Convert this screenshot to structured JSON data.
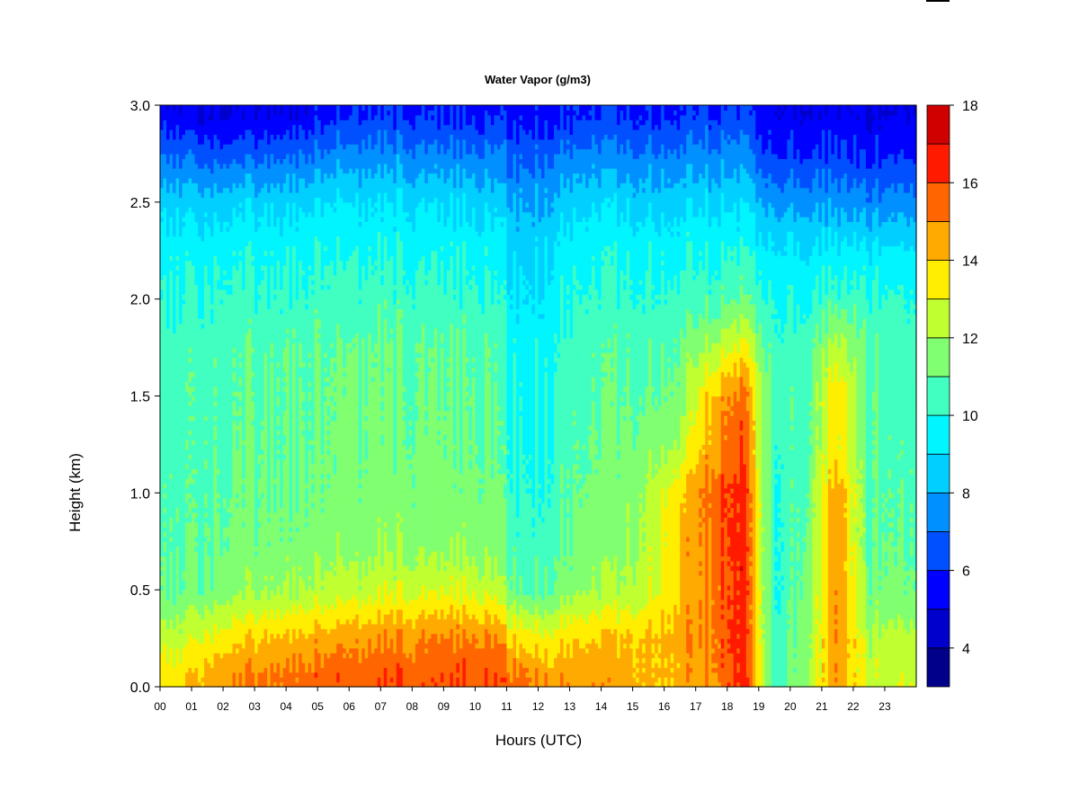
{
  "chart_data": {
    "type": "heatmap",
    "title": "Water Vapor (g/m3)",
    "xlabel": "Hours (UTC)",
    "ylabel": "Height (km)",
    "xlim": [
      0,
      24
    ],
    "ylim": [
      0,
      3
    ],
    "x_ticks": [
      "00",
      "01",
      "02",
      "03",
      "04",
      "05",
      "06",
      "07",
      "08",
      "09",
      "10",
      "11",
      "12",
      "13",
      "14",
      "15",
      "16",
      "17",
      "18",
      "19",
      "20",
      "21",
      "22",
      "23"
    ],
    "y_ticks": [
      "0.0",
      "0.5",
      "1.0",
      "1.5",
      "2.0",
      "2.5",
      "3.0"
    ],
    "colorbar": {
      "range": [
        3,
        18
      ],
      "ticks": [
        "4",
        "6",
        "8",
        "10",
        "12",
        "14",
        "16",
        "18"
      ],
      "tick_values": [
        4,
        6,
        8,
        10,
        12,
        14,
        16,
        18
      ],
      "levels": [
        3,
        4,
        5,
        6,
        7,
        8,
        9,
        10,
        11,
        12,
        13,
        14,
        15,
        16,
        17,
        18
      ],
      "colors": [
        "#00008B",
        "#0000CD",
        "#0000FF",
        "#0050FF",
        "#0090FF",
        "#00CFFF",
        "#00F5FF",
        "#40FFC0",
        "#80FF70",
        "#C0FF30",
        "#FFEE00",
        "#FFAA00",
        "#FF6600",
        "#FF1A00",
        "#D00000",
        "#8B0000"
      ]
    },
    "hours": [
      0,
      1,
      2,
      3,
      4,
      5,
      6,
      7,
      8,
      9,
      10,
      11,
      12,
      13,
      14,
      15,
      16,
      17,
      18,
      19,
      20,
      21,
      22,
      23
    ],
    "heights_km": [
      0.05,
      0.25,
      0.5,
      0.75,
      1.0,
      1.25,
      1.5,
      1.75,
      2.0,
      2.25,
      2.5,
      2.75,
      2.95
    ],
    "values": [
      [
        13.5,
        14.5,
        15.0,
        15.3,
        15.5,
        15.6,
        15.7,
        15.8,
        15.8,
        15.8,
        15.8,
        15.3,
        14.8,
        14.5,
        14.5,
        14.3,
        14.5,
        15.0,
        16.5,
        10.5,
        12.0,
        14.8,
        12.5,
        13.0
      ],
      [
        12.5,
        13.2,
        13.8,
        14.2,
        14.4,
        14.6,
        14.8,
        15.0,
        15.0,
        15.1,
        15.0,
        13.5,
        13.5,
        13.8,
        14.0,
        14.3,
        14.7,
        15.2,
        16.5,
        10.3,
        11.8,
        15.0,
        12.3,
        12.5
      ],
      [
        11.0,
        11.3,
        11.8,
        12.0,
        12.2,
        12.4,
        12.6,
        12.8,
        12.8,
        12.8,
        12.6,
        10.8,
        11.2,
        11.8,
        12.0,
        12.8,
        14.2,
        15.2,
        16.5,
        10.0,
        11.5,
        14.8,
        11.3,
        11.3
      ],
      [
        10.8,
        11.0,
        11.3,
        11.4,
        11.5,
        11.6,
        11.6,
        11.8,
        11.6,
        11.6,
        11.5,
        10.3,
        10.8,
        11.2,
        11.5,
        12.5,
        14.3,
        15.3,
        16.5,
        10.0,
        11.3,
        14.6,
        11.0,
        11.1
      ],
      [
        10.7,
        10.9,
        11.1,
        11.2,
        11.3,
        11.3,
        11.4,
        11.5,
        11.4,
        11.4,
        11.3,
        10.0,
        10.5,
        11.0,
        11.3,
        12.4,
        14.0,
        15.5,
        16.5,
        10.0,
        11.2,
        14.8,
        11.0,
        11.0
      ],
      [
        10.6,
        10.8,
        11.0,
        11.1,
        11.2,
        11.2,
        11.3,
        11.3,
        11.3,
        11.2,
        11.1,
        9.8,
        10.3,
        10.8,
        11.1,
        11.6,
        12.3,
        14.6,
        15.8,
        10.2,
        11.0,
        13.5,
        11.0,
        10.9
      ],
      [
        10.6,
        10.8,
        10.9,
        11.0,
        11.1,
        11.1,
        11.2,
        11.2,
        11.1,
        11.1,
        11.0,
        9.6,
        10.2,
        10.6,
        10.9,
        11.2,
        11.6,
        14.2,
        15.4,
        10.5,
        10.9,
        13.8,
        10.9,
        10.8
      ],
      [
        10.5,
        10.7,
        10.8,
        10.9,
        11.0,
        11.0,
        11.1,
        11.1,
        11.0,
        10.9,
        10.8,
        9.4,
        10.0,
        10.4,
        10.7,
        10.9,
        11.2,
        12.2,
        13.2,
        10.4,
        10.6,
        12.5,
        10.8,
        10.7
      ],
      [
        10.0,
        10.2,
        10.3,
        10.3,
        10.4,
        10.4,
        10.5,
        10.5,
        10.4,
        10.3,
        10.2,
        9.0,
        9.6,
        10.0,
        10.2,
        10.3,
        10.5,
        10.6,
        11.0,
        10.0,
        10.0,
        10.5,
        10.3,
        10.2
      ],
      [
        9.6,
        9.7,
        9.8,
        9.8,
        9.9,
        9.9,
        9.9,
        9.9,
        9.8,
        9.7,
        9.6,
        8.6,
        9.2,
        9.5,
        9.7,
        9.8,
        9.9,
        9.9,
        9.9,
        9.2,
        9.2,
        9.2,
        9.2,
        9.3
      ],
      [
        8.6,
        8.6,
        8.7,
        8.8,
        8.9,
        9.0,
        9.0,
        9.0,
        8.9,
        8.8,
        8.7,
        7.8,
        8.3,
        8.6,
        8.7,
        8.8,
        8.8,
        8.8,
        8.8,
        7.8,
        7.8,
        7.6,
        7.4,
        7.6
      ],
      [
        6.8,
        6.6,
        6.6,
        6.8,
        7.0,
        7.3,
        7.4,
        7.4,
        7.3,
        7.2,
        7.1,
        6.6,
        6.9,
        7.1,
        7.2,
        7.3,
        7.4,
        7.4,
        7.4,
        6.0,
        6.2,
        6.0,
        5.8,
        6.0
      ],
      [
        5.4,
        5.0,
        5.0,
        5.2,
        5.4,
        5.8,
        6.0,
        6.0,
        5.9,
        5.8,
        5.7,
        5.5,
        5.7,
        5.8,
        5.9,
        6.0,
        6.1,
        6.1,
        6.1,
        5.2,
        5.3,
        5.3,
        5.0,
        5.2
      ]
    ]
  }
}
